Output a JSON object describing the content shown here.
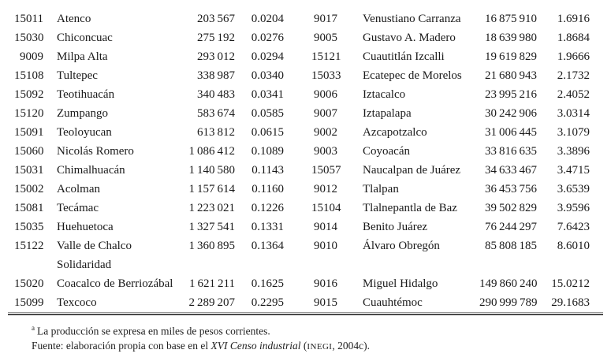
{
  "colors": {
    "text": "#1a1a1a",
    "rule_dark": "#4a4a4a",
    "rule_light": "#9a9a9a",
    "background": "#ffffff"
  },
  "table": {
    "left": {
      "rows": [
        {
          "code": "15011",
          "name": "Atenco",
          "production": "203 567",
          "share": "0.0204"
        },
        {
          "code": "15030",
          "name": "Chiconcuac",
          "production": "275 192",
          "share": "0.0276"
        },
        {
          "code": "9009",
          "name": "Milpa Alta",
          "production": "293 012",
          "share": "0.0294"
        },
        {
          "code": "15108",
          "name": "Tultepec",
          "production": "338 987",
          "share": "0.0340"
        },
        {
          "code": "15092",
          "name": "Teotihuacán",
          "production": "340 483",
          "share": "0.0341"
        },
        {
          "code": "15120",
          "name": "Zumpango",
          "production": "583 674",
          "share": "0.0585"
        },
        {
          "code": "15091",
          "name": "Teoloyucan",
          "production": "613 812",
          "share": "0.0615"
        },
        {
          "code": "15060",
          "name": "Nicolás Romero",
          "production": "1 086 412",
          "share": "0.1089"
        },
        {
          "code": "15031",
          "name": "Chimalhuacán",
          "production": "1 140 580",
          "share": "0.1143"
        },
        {
          "code": "15002",
          "name": "Acolman",
          "production": "1 157 614",
          "share": "0.1160"
        },
        {
          "code": "15081",
          "name": "Tecámac",
          "production": "1 223 021",
          "share": "0.1226"
        },
        {
          "code": "15035",
          "name": "Huehuetoca",
          "production": "1 327 541",
          "share": "0.1331"
        },
        {
          "code": "15122",
          "name": "Valle de Chalco",
          "name2": "Solidaridad",
          "production": "1 360 895",
          "share": "0.1364"
        },
        {
          "code": "15020",
          "name": "Coacalco de Berriozábal",
          "production": "1 621 211",
          "share": "0.1625"
        },
        {
          "code": "15099",
          "name": "Texcoco",
          "production": "2 289 207",
          "share": "0.2295"
        }
      ]
    },
    "right": {
      "rows": [
        {
          "code": "9017",
          "name": "Venustiano Carranza",
          "production": "16 875 910",
          "share": "1.6916"
        },
        {
          "code": "9005",
          "name": "Gustavo A. Madero",
          "production": "18 639 980",
          "share": "1.8684"
        },
        {
          "code": "15121",
          "name": "Cuautitlán Izcalli",
          "production": "19 619 829",
          "share": "1.9666"
        },
        {
          "code": "15033",
          "name": "Ecatepec de Morelos",
          "production": "21 680 943",
          "share": "2.1732"
        },
        {
          "code": "9006",
          "name": "Iztacalco",
          "production": "23 995 216",
          "share": "2.4052"
        },
        {
          "code": "9007",
          "name": "Iztapalapa",
          "production": "30 242 906",
          "share": "3.0314"
        },
        {
          "code": "9002",
          "name": "Azcapotzalco",
          "production": "31 006 445",
          "share": "3.1079"
        },
        {
          "code": "9003",
          "name": "Coyoacán",
          "production": "33 816 635",
          "share": "3.3896"
        },
        {
          "code": "15057",
          "name": "Naucalpan de Juárez",
          "production": "34 633 467",
          "share": "3.4715"
        },
        {
          "code": "9012",
          "name": "Tlalpan",
          "production": "36 453 756",
          "share": "3.6539"
        },
        {
          "code": "15104",
          "name": "Tlalnepantla de Baz",
          "production": "39 502 829",
          "share": "3.9596"
        },
        {
          "code": "9014",
          "name": "Benito Juárez",
          "production": "76 244 297",
          "share": "7.6423"
        },
        {
          "code": "9010",
          "name": "Álvaro Obregón",
          "production": "85 808 185",
          "share": "8.6010"
        },
        {
          "code": "",
          "name": "",
          "production": "",
          "share": ""
        },
        {
          "code": "9016",
          "name": "Miguel Hidalgo",
          "production": "149 860 240",
          "share": "15.0212"
        },
        {
          "code": "9015",
          "name": "Cuauhtémoc",
          "production": "290 999 789",
          "share": "29.1683"
        }
      ]
    }
  },
  "footnotes": {
    "note_marker": "a",
    "note_text": "La producción se expresa en miles de pesos corrientes.",
    "source_prefix": "Fuente: elaboración propia con base en el ",
    "source_work": "XVI Censo industrial",
    "source_mid": " (",
    "source_org": "INEGI",
    "source_tail": ", 2004c)."
  }
}
